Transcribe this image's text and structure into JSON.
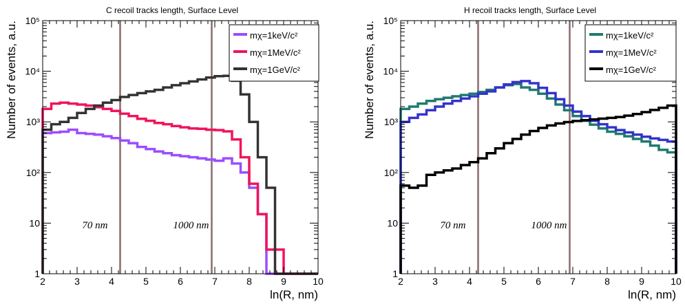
{
  "chart_data": [
    {
      "type": "step",
      "title": "C recoil tracks length, Surface Level",
      "xlabel": "ln(R, nm)",
      "ylabel": "Number of events, a.u.",
      "xlim": [
        2,
        10
      ],
      "ylim": [
        1,
        100000
      ],
      "yscale": "log",
      "x_ticks": [
        "2",
        "3",
        "4",
        "5",
        "6",
        "7",
        "8",
        "9",
        "10"
      ],
      "y_ticks": [
        "1",
        "10",
        "10²",
        "10³",
        "10⁴",
        "10⁵"
      ],
      "legend_position": "top-right",
      "vertical_lines": [
        {
          "x": 4.25,
          "label": "70 nm",
          "color": "#8b6a6a"
        },
        {
          "x": 6.91,
          "label": "1000 nm",
          "color": "#8b6a6a"
        }
      ],
      "bin_edges": [
        2,
        2.25,
        2.5,
        2.75,
        3,
        3.25,
        3.5,
        3.75,
        4,
        4.25,
        4.5,
        4.75,
        5,
        5.25,
        5.5,
        5.75,
        6,
        6.25,
        6.5,
        6.75,
        7,
        7.25,
        7.5,
        7.75,
        8,
        8.25,
        8.5,
        8.75,
        9,
        9.25,
        9.5,
        9.75,
        10
      ],
      "series": [
        {
          "name": "mχ=1keV/c²",
          "color": "#9b4dff",
          "values": [
            600,
            620,
            640,
            700,
            600,
            580,
            560,
            520,
            480,
            430,
            380,
            320,
            290,
            260,
            240,
            220,
            210,
            200,
            190,
            180,
            170,
            190,
            150,
            100,
            50,
            15,
            1,
            1,
            1,
            1,
            1,
            1
          ]
        },
        {
          "name": "mχ=1MeV/c²",
          "color": "#f0145a",
          "values": [
            1800,
            2300,
            2400,
            2300,
            2200,
            2100,
            1950,
            1800,
            1650,
            1450,
            1300,
            1150,
            1050,
            950,
            900,
            830,
            780,
            740,
            730,
            700,
            690,
            650,
            450,
            200,
            60,
            15,
            3,
            3,
            1,
            1,
            1,
            1
          ]
        },
        {
          "name": "mχ=1GeV/c²",
          "color": "#333333",
          "values": [
            700,
            900,
            1000,
            1200,
            1500,
            1800,
            2100,
            2400,
            2700,
            3100,
            3400,
            3700,
            4000,
            4300,
            4800,
            5300,
            5800,
            6300,
            6900,
            7500,
            8000,
            8100,
            6500,
            3500,
            1000,
            200,
            50,
            1,
            1,
            1,
            1,
            1
          ]
        }
      ]
    },
    {
      "type": "step",
      "title": "H recoil tracks length, Surface Level",
      "xlabel": "ln(R, nm)",
      "ylabel": "Number of events, a.u.",
      "xlim": [
        2,
        10
      ],
      "ylim": [
        1,
        100000
      ],
      "yscale": "log",
      "x_ticks": [
        "2",
        "3",
        "4",
        "5",
        "6",
        "7",
        "8",
        "9",
        "10"
      ],
      "y_ticks": [
        "1",
        "10",
        "10²",
        "10³",
        "10⁴",
        "10⁵"
      ],
      "legend_position": "top-right",
      "vertical_lines": [
        {
          "x": 4.25,
          "label": "70 nm",
          "color": "#8b6a6a"
        },
        {
          "x": 6.91,
          "label": "1000 nm",
          "color": "#8b6a6a"
        }
      ],
      "bin_edges": [
        2,
        2.25,
        2.5,
        2.75,
        3,
        3.25,
        3.5,
        3.75,
        4,
        4.25,
        4.5,
        4.75,
        5,
        5.25,
        5.5,
        5.75,
        6,
        6.25,
        6.5,
        6.75,
        7,
        7.25,
        7.5,
        7.75,
        8,
        8.25,
        8.5,
        8.75,
        9,
        9.25,
        9.5,
        9.75,
        10
      ],
      "series": [
        {
          "name": "mχ=1keV/c²",
          "color": "#1f7a6e",
          "values": [
            1800,
            2000,
            2300,
            2600,
            2800,
            3000,
            3200,
            3400,
            3600,
            3900,
            4300,
            4800,
            5300,
            5600,
            4800,
            4300,
            3600,
            2900,
            2200,
            1700,
            1300,
            1050,
            880,
            740,
            640,
            580,
            520,
            460,
            410,
            340,
            280,
            250
          ]
        },
        {
          "name": "mχ=1MeV/c²",
          "color": "#3333cc",
          "values": [
            1000,
            1200,
            1400,
            1700,
            2000,
            2300,
            2600,
            2900,
            3200,
            3600,
            4000,
            4800,
            5500,
            6100,
            6400,
            5800,
            4700,
            3700,
            2800,
            2100,
            1600,
            1300,
            1050,
            900,
            780,
            690,
            620,
            560,
            510,
            470,
            440,
            410
          ]
        },
        {
          "name": "mχ=1GeV/c²",
          "color": "#000000",
          "values": [
            55,
            50,
            55,
            90,
            100,
            110,
            120,
            140,
            160,
            190,
            240,
            300,
            380,
            460,
            560,
            660,
            760,
            850,
            930,
            990,
            1040,
            1080,
            1120,
            1160,
            1200,
            1250,
            1330,
            1430,
            1560,
            1720,
            1900,
            2100
          ]
        }
      ]
    }
  ]
}
